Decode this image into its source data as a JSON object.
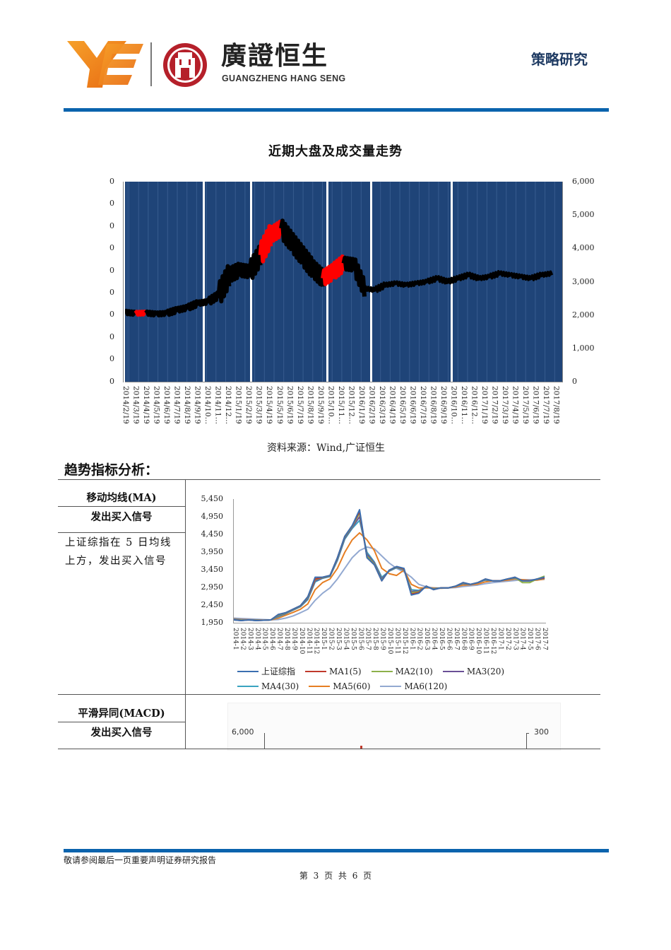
{
  "header": {
    "brand_cn": "廣證恒生",
    "brand_en": "GUANGZHENG HANG SENG",
    "section_tag": "策略研究",
    "colors": {
      "rule": "#0a63ad",
      "logo_orange": "#f08a1c",
      "logo_red": "#b5202a",
      "tag": "#1f3b63"
    }
  },
  "chart1": {
    "title": "近期大盘及成交量走势",
    "source": "资料来源：Wind,广证恒生",
    "left_axis_ticks": [
      "0",
      "0",
      "0",
      "0",
      "0",
      "0",
      "0",
      "0",
      "0",
      "0"
    ],
    "right_axis_ticks": [
      "6,000",
      "5,000",
      "4,000",
      "3,000",
      "2,000",
      "1,000",
      "0"
    ]
  },
  "chart_data": [
    {
      "type": "line",
      "title": "近期大盘及成交量走势",
      "xlabel": "",
      "ylabel_right": "上证综指",
      "ylim_right": [
        0,
        6000
      ],
      "background_volume_bars": true,
      "background_color": "#1f4478",
      "categories": [
        "2014/2/19",
        "2014/3/19",
        "2014/4/19",
        "2014/5/19",
        "2014/6/19",
        "2014/7/19",
        "2014/8/19",
        "2014/9/19",
        "2014/10…",
        "2014/11…",
        "2014/12…",
        "2015/1/19",
        "2015/2/19",
        "2015/3/19",
        "2015/4/19",
        "2015/5/19",
        "2015/6/19",
        "2015/7/19",
        "2015/8/19",
        "2015/9/19",
        "2015/10…",
        "2015/11…",
        "2015/12…",
        "2016/1/19",
        "2016/2/19",
        "2016/3/19",
        "2016/4/19",
        "2016/5/19",
        "2016/6/19",
        "2016/7/19",
        "2016/8/19",
        "2016/9/19",
        "2016/10…",
        "2016/11…",
        "2016/12…",
        "2017/1/19",
        "2017/2/19",
        "2017/3/19",
        "2017/4/19",
        "2017/5/19",
        "2017/6/19",
        "2017/7/19",
        "2017/8/19"
      ],
      "series": [
        {
          "name": "上证综指",
          "color_up": "#ff0000",
          "color_down": "#000000",
          "values": [
            2080,
            2050,
            2060,
            2030,
            2050,
            2150,
            2220,
            2350,
            2400,
            2600,
            3200,
            3350,
            3300,
            3800,
            4400,
            4600,
            4200,
            3800,
            3400,
            3100,
            3300,
            3550,
            3500,
            2800,
            2750,
            2900,
            2950,
            2900,
            2950,
            3000,
            3100,
            3000,
            3100,
            3200,
            3100,
            3150,
            3250,
            3200,
            3150,
            3100,
            3200,
            3250,
            null
          ]
        }
      ],
      "legend": []
    },
    {
      "type": "line",
      "title": "移动均线(MA)",
      "ylim": [
        1950,
        5450
      ],
      "yticks": [
        "5,450",
        "4,950",
        "4,450",
        "3,950",
        "3,450",
        "2,950",
        "2,450",
        "1,950"
      ],
      "categories": [
        "2014-1",
        "2014-2",
        "2014-3",
        "2014-4",
        "2014-5",
        "2014-6",
        "2014-7",
        "2014-8",
        "2014-9",
        "2014-10",
        "2014-11",
        "2014-12",
        "2015-1",
        "2015-2",
        "2015-3",
        "2015-4",
        "2015-5",
        "2015-6",
        "2015-7",
        "2015-8",
        "2015-9",
        "2015-10",
        "2015-11",
        "2015-12",
        "2016-1",
        "2016-2",
        "2016-3",
        "2016-4",
        "2016-5",
        "2016-6",
        "2016-7",
        "2016-8",
        "2016-9",
        "2016-10",
        "2016-11",
        "2016-12",
        "2017-1",
        "2017-2",
        "2017-3",
        "2017-4",
        "2017-5",
        "2017-6",
        "2017-7"
      ],
      "series": [
        {
          "name": "上证综指",
          "color": "#3b6fb0",
          "values": [
            2050,
            2030,
            2050,
            2030,
            2040,
            2050,
            2200,
            2250,
            2350,
            2450,
            2700,
            3250,
            3250,
            3300,
            3800,
            4400,
            4700,
            5150,
            3800,
            3600,
            3150,
            3450,
            3550,
            3500,
            2750,
            2800,
            3000,
            2900,
            2950,
            2950,
            3000,
            3100,
            3050,
            3100,
            3200,
            3150,
            3150,
            3200,
            3250,
            3150,
            3150,
            3200,
            3250
          ]
        },
        {
          "name": "MA1(5)",
          "color": "#c0392b",
          "values": [
            2050,
            2030,
            2050,
            2030,
            2040,
            2050,
            2200,
            2250,
            2350,
            2450,
            2700,
            3200,
            3250,
            3300,
            3800,
            4400,
            4700,
            5100,
            3800,
            3600,
            3150,
            3450,
            3550,
            3480,
            2780,
            2820,
            3000,
            2900,
            2950,
            2950,
            3000,
            3100,
            3050,
            3100,
            3200,
            3150,
            3150,
            3200,
            3250,
            3150,
            3150,
            3200,
            3230
          ]
        },
        {
          "name": "MA2(10)",
          "color": "#8db04a",
          "values": [
            2050,
            2040,
            2050,
            2035,
            2040,
            2050,
            2180,
            2240,
            2340,
            2440,
            2680,
            3180,
            3240,
            3290,
            3780,
            4380,
            4680,
            5050,
            3850,
            3620,
            3170,
            3440,
            3540,
            3470,
            2820,
            2840,
            2990,
            2910,
            2950,
            2950,
            3000,
            3090,
            3050,
            3100,
            3190,
            3150,
            3150,
            3200,
            3240,
            3100,
            3100,
            3200,
            3280
          ]
        },
        {
          "name": "MA3(20)",
          "color": "#6a4f96",
          "values": [
            2060,
            2045,
            2050,
            2040,
            2040,
            2050,
            2160,
            2230,
            2330,
            2430,
            2650,
            3150,
            3230,
            3280,
            3750,
            4350,
            4650,
            4950,
            3900,
            3650,
            3200,
            3430,
            3530,
            3460,
            2850,
            2860,
            2980,
            2920,
            2950,
            2950,
            3000,
            3080,
            3050,
            3100,
            3180,
            3150,
            3150,
            3200,
            3230,
            3150,
            3150,
            3200,
            3230
          ]
        },
        {
          "name": "MA4(30)",
          "color": "#3aa3c0",
          "values": [
            2070,
            2050,
            2050,
            2045,
            2040,
            2050,
            2140,
            2220,
            2320,
            2420,
            2620,
            3120,
            3220,
            3270,
            3720,
            4320,
            4620,
            4850,
            3950,
            3680,
            3250,
            3420,
            3520,
            3450,
            2900,
            2880,
            2970,
            2930,
            2950,
            2950,
            3000,
            3070,
            3050,
            3100,
            3170,
            3150,
            3150,
            3200,
            3220,
            3150,
            3150,
            3190,
            3220
          ]
        },
        {
          "name": "MA5(60)",
          "color": "#e67e22",
          "values": [
            2080,
            2060,
            2055,
            2050,
            2045,
            2050,
            2100,
            2180,
            2260,
            2350,
            2500,
            2900,
            3100,
            3200,
            3500,
            3950,
            4300,
            4500,
            4300,
            4000,
            3500,
            3350,
            3300,
            3450,
            3050,
            2950,
            2950,
            2950,
            2940,
            2950,
            2980,
            3030,
            3040,
            3060,
            3120,
            3150,
            3150,
            3170,
            3200,
            3180,
            3160,
            3170,
            3200
          ]
        },
        {
          "name": "MA6(120)",
          "color": "#93a9d1",
          "values": [
            2100,
            2090,
            2080,
            2070,
            2060,
            2050,
            2060,
            2100,
            2160,
            2250,
            2350,
            2600,
            2800,
            2950,
            3200,
            3500,
            3800,
            4000,
            4100,
            4050,
            3850,
            3650,
            3500,
            3400,
            3250,
            3050,
            2980,
            2950,
            2950,
            2950,
            2960,
            2990,
            3010,
            3030,
            3070,
            3100,
            3120,
            3140,
            3160,
            3180,
            3180,
            3180,
            3190
          ]
        }
      ],
      "legend": [
        "上证综指",
        "MA1(5)",
        "MA2(10)",
        "MA3(20)",
        "MA4(30)",
        "MA5(60)",
        "MA6(120)"
      ]
    }
  ],
  "trend": {
    "heading": "趋势指标分析：",
    "rows": [
      {
        "name": "移动均线(MA)",
        "signal": "发出买入信号",
        "desc_line1": "上证综指在 5 日均线",
        "desc_line2": "上方，发出买入信号"
      },
      {
        "name": "平滑异同(MACD)",
        "signal": "发出买入信号"
      }
    ],
    "ma_chart": {
      "yticks": [
        "5,450",
        "4,950",
        "4,450",
        "3,950",
        "3,450",
        "2,950",
        "2,450",
        "1,950"
      ],
      "legend": [
        {
          "label": "上证综指",
          "color": "#3b6fb0"
        },
        {
          "label": "MA1(5)",
          "color": "#c0392b"
        },
        {
          "label": "MA2(10)",
          "color": "#8db04a"
        },
        {
          "label": "MA3(20)",
          "color": "#6a4f96"
        },
        {
          "label": "MA4(30)",
          "color": "#3aa3c0"
        },
        {
          "label": "MA5(60)",
          "color": "#e67e22"
        },
        {
          "label": "MA6(120)",
          "color": "#93a9d1"
        }
      ]
    },
    "macd_chart": {
      "left_top_tick": "6,000",
      "right_top_tick": "300"
    }
  },
  "footer": {
    "disclaimer": "敬请参阅最后一页重要声明证券研究报告",
    "page": "第 3 页 共 6 页"
  }
}
